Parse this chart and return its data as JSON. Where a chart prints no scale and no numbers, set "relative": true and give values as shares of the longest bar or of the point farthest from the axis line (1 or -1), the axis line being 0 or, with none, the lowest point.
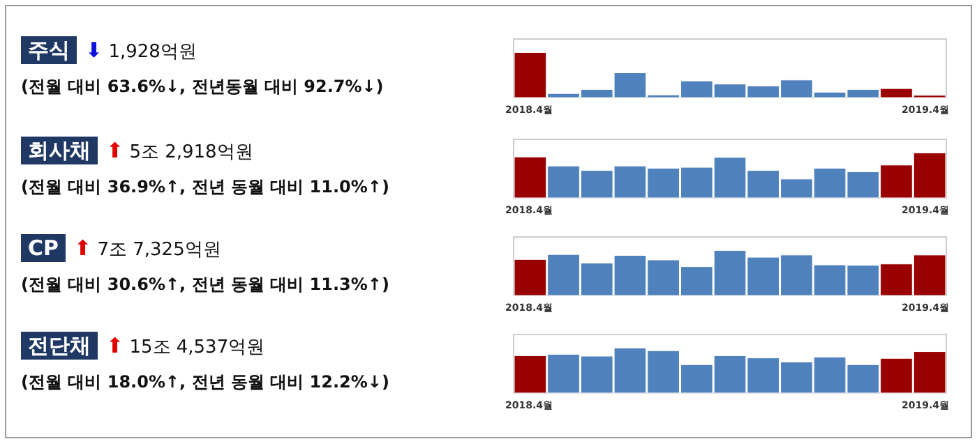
{
  "chart_data": [
    {
      "type": "bar",
      "relative": true,
      "annotations": [
        "주식",
        "⬇ 1,928억원",
        "(전월 대비 63.6%↓, 전년동월 대비 92.7%↓)"
      ],
      "categories": [
        "2018.4월",
        null,
        null,
        null,
        null,
        null,
        null,
        null,
        null,
        null,
        null,
        null,
        "2019.4월"
      ],
      "values": [
        1,
        0.09,
        0.18,
        0.55,
        0.06,
        0.37,
        0.3,
        0.26,
        0.39,
        0.12,
        0.18,
        0.2,
        0.05
      ],
      "colors": [
        "#990000",
        "#4f81bd",
        "#4f81bd",
        "#4f81bd",
        "#4f81bd",
        "#4f81bd",
        "#4f81bd",
        "#4f81bd",
        "#4f81bd",
        "#4f81bd",
        "#4f81bd",
        "#990000",
        "#990000"
      ]
    },
    {
      "type": "bar",
      "relative": true,
      "annotations": [
        "회사채",
        "⬆ 5조 2,918억원",
        "(전월 대비 36.9%↑, 전년 동월 대비 11.0%↑)"
      ],
      "categories": [
        "2018.4월",
        null,
        null,
        null,
        null,
        null,
        null,
        null,
        null,
        null,
        null,
        null,
        "2019.4월"
      ],
      "values": [
        0.91,
        0.71,
        0.61,
        0.71,
        0.66,
        0.68,
        0.9,
        0.61,
        0.42,
        0.66,
        0.58,
        0.73,
        1
      ],
      "colors": [
        "#990000",
        "#4f81bd",
        "#4f81bd",
        "#4f81bd",
        "#4f81bd",
        "#4f81bd",
        "#4f81bd",
        "#4f81bd",
        "#4f81bd",
        "#4f81bd",
        "#4f81bd",
        "#990000",
        "#990000"
      ]
    },
    {
      "type": "bar",
      "relative": true,
      "annotations": [
        "CP",
        "⬆ 7조 7,325억원",
        "(전월 대비 30.6%↑, 전년 동월 대비 11.3%↑)"
      ],
      "categories": [
        "2018.4월",
        null,
        null,
        null,
        null,
        null,
        null,
        null,
        null,
        null,
        null,
        null,
        "2019.4월"
      ],
      "values": [
        0.8,
        0.91,
        0.72,
        0.89,
        0.79,
        0.64,
        1,
        0.85,
        0.9,
        0.68,
        0.67,
        0.7,
        0.9
      ],
      "colors": [
        "#990000",
        "#4f81bd",
        "#4f81bd",
        "#4f81bd",
        "#4f81bd",
        "#4f81bd",
        "#4f81bd",
        "#4f81bd",
        "#4f81bd",
        "#4f81bd",
        "#4f81bd",
        "#990000",
        "#990000"
      ]
    },
    {
      "type": "bar",
      "relative": true,
      "annotations": [
        "전단채",
        "⬆ 15조 4,537억원",
        "(전월 대비 18.0%↑, 전년 동월 대비 12.2%↓)"
      ],
      "categories": [
        "2018.4월",
        null,
        null,
        null,
        null,
        null,
        null,
        null,
        null,
        null,
        null,
        null,
        "2019.4월"
      ],
      "values": [
        0.83,
        0.86,
        0.82,
        1,
        0.94,
        0.63,
        0.83,
        0.78,
        0.69,
        0.8,
        0.63,
        0.77,
        0.92
      ],
      "colors": [
        "#990000",
        "#4f81bd",
        "#4f81bd",
        "#4f81bd",
        "#4f81bd",
        "#4f81bd",
        "#4f81bd",
        "#4f81bd",
        "#4f81bd",
        "#4f81bd",
        "#4f81bd",
        "#990000",
        "#990000"
      ]
    }
  ]
}
